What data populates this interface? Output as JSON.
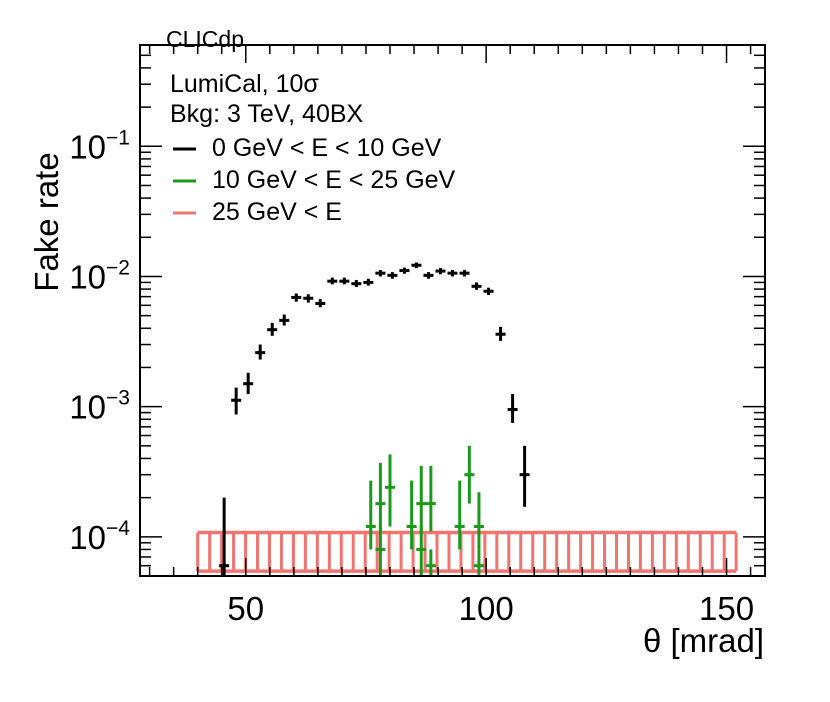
{
  "chart_data": {
    "type": "scatter",
    "title": "",
    "xlabel": "θ [mrad]",
    "ylabel": "Fake rate",
    "xlim": [
      28,
      158
    ],
    "ylim": [
      5e-05,
      0.6
    ],
    "yscale": "log",
    "watermark": "CLICdp",
    "annotations": [
      "LumiCal, 10σ",
      "Bkg: 3 TeV, 40BX"
    ],
    "x_ticks": [
      {
        "value": 50,
        "label": "50"
      },
      {
        "value": 100,
        "label": "100"
      },
      {
        "value": 150,
        "label": "150"
      }
    ],
    "y_ticks": [
      {
        "value": 0.0001,
        "base": "10",
        "exp": "−4"
      },
      {
        "value": 0.001,
        "base": "10",
        "exp": "−3"
      },
      {
        "value": 0.01,
        "base": "10",
        "exp": "−2"
      },
      {
        "value": 0.1,
        "base": "10",
        "exp": "−1"
      }
    ],
    "legend_position": "top-left",
    "series": [
      {
        "name": "0 GeV < E < 10 GeV",
        "color": "#000000",
        "points": [
          {
            "x": 45.5,
            "y": 6e-05,
            "ylo": 5e-05,
            "yhi": 0.0002
          },
          {
            "x": 48.0,
            "y": 0.00112,
            "ylo": 0.00087,
            "yhi": 0.0014
          },
          {
            "x": 50.5,
            "y": 0.0015,
            "ylo": 0.00125,
            "yhi": 0.00182
          },
          {
            "x": 53.0,
            "y": 0.0026,
            "ylo": 0.0023,
            "yhi": 0.003
          },
          {
            "x": 55.5,
            "y": 0.0039,
            "ylo": 0.0035,
            "yhi": 0.0044
          },
          {
            "x": 58.0,
            "y": 0.0046,
            "ylo": 0.0042,
            "yhi": 0.0051
          },
          {
            "x": 60.5,
            "y": 0.0069,
            "ylo": 0.0064,
            "yhi": 0.0074
          },
          {
            "x": 63.0,
            "y": 0.0068,
            "ylo": 0.0063,
            "yhi": 0.0073
          },
          {
            "x": 65.5,
            "y": 0.0062,
            "ylo": 0.0058,
            "yhi": 0.0067
          },
          {
            "x": 68.0,
            "y": 0.0092,
            "ylo": 0.0087,
            "yhi": 0.0098
          },
          {
            "x": 70.5,
            "y": 0.0092,
            "ylo": 0.0087,
            "yhi": 0.0098
          },
          {
            "x": 73.0,
            "y": 0.0088,
            "ylo": 0.0083,
            "yhi": 0.0094
          },
          {
            "x": 75.5,
            "y": 0.009,
            "ylo": 0.0085,
            "yhi": 0.0096
          },
          {
            "x": 78.0,
            "y": 0.0106,
            "ylo": 0.01,
            "yhi": 0.0112
          },
          {
            "x": 80.5,
            "y": 0.0102,
            "ylo": 0.0096,
            "yhi": 0.0108
          },
          {
            "x": 83.0,
            "y": 0.0111,
            "ylo": 0.0105,
            "yhi": 0.0117
          },
          {
            "x": 85.5,
            "y": 0.0122,
            "ylo": 0.0116,
            "yhi": 0.0128
          },
          {
            "x": 88.0,
            "y": 0.0102,
            "ylo": 0.0096,
            "yhi": 0.0108
          },
          {
            "x": 90.5,
            "y": 0.011,
            "ylo": 0.0104,
            "yhi": 0.0116
          },
          {
            "x": 93.0,
            "y": 0.0106,
            "ylo": 0.01,
            "yhi": 0.0112
          },
          {
            "x": 95.5,
            "y": 0.0106,
            "ylo": 0.01,
            "yhi": 0.0112
          },
          {
            "x": 98.0,
            "y": 0.0084,
            "ylo": 0.0079,
            "yhi": 0.009
          },
          {
            "x": 100.5,
            "y": 0.0077,
            "ylo": 0.0072,
            "yhi": 0.0082
          },
          {
            "x": 103.0,
            "y": 0.0036,
            "ylo": 0.0032,
            "yhi": 0.0041
          },
          {
            "x": 105.5,
            "y": 0.00095,
            "ylo": 0.00075,
            "yhi": 0.00125
          },
          {
            "x": 108.0,
            "y": 0.0003,
            "ylo": 0.00017,
            "yhi": 0.0005
          }
        ]
      },
      {
        "name": "10 GeV < E < 25 GeV",
        "color": "#1a9a1a",
        "points": [
          {
            "x": 76.0,
            "y": 0.00012,
            "ylo": 8e-05,
            "yhi": 0.00027
          },
          {
            "x": 78.0,
            "y": 0.00018,
            "ylo": 0.00011,
            "yhi": 0.00037
          },
          {
            "x": 80.0,
            "y": 0.00024,
            "ylo": 0.00012,
            "yhi": 0.00043
          },
          {
            "x": 78.0,
            "y": 8e-05,
            "ylo": 5e-05,
            "yhi": 0.00012
          },
          {
            "x": 84.5,
            "y": 0.00012,
            "ylo": 8e-05,
            "yhi": 0.00027
          },
          {
            "x": 86.5,
            "y": 0.00018,
            "ylo": 0.00011,
            "yhi": 0.00035
          },
          {
            "x": 88.5,
            "y": 0.00018,
            "ylo": 0.00011,
            "yhi": 0.00035
          },
          {
            "x": 86.5,
            "y": 8e-05,
            "ylo": 5e-05,
            "yhi": 0.00012
          },
          {
            "x": 88.5,
            "y": 6e-05,
            "ylo": 5e-05,
            "yhi": 8e-05
          },
          {
            "x": 94.5,
            "y": 0.00012,
            "ylo": 8e-05,
            "yhi": 0.00027
          },
          {
            "x": 96.5,
            "y": 0.0003,
            "ylo": 0.00018,
            "yhi": 0.0005
          },
          {
            "x": 98.5,
            "y": 0.00012,
            "ylo": 8e-05,
            "yhi": 0.00022
          },
          {
            "x": 98.5,
            "y": 6e-05,
            "ylo": 5e-05,
            "yhi": 8e-05
          }
        ]
      },
      {
        "name": "25 GeV < E",
        "color": "#f07470",
        "band": {
          "xmin": 40,
          "xmax": 152,
          "ylo": 5.45e-05,
          "yhi": 0.000108,
          "bins": 45
        }
      }
    ]
  }
}
